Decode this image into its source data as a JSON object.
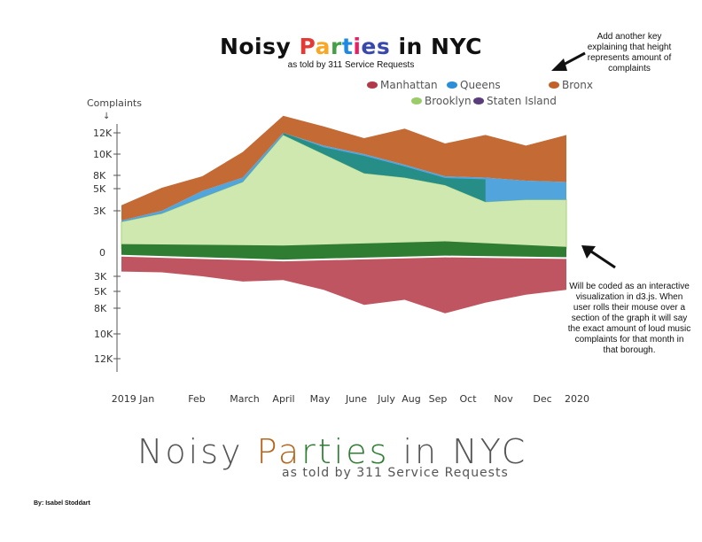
{
  "header": {
    "title_parts": [
      {
        "text": "Noisy ",
        "color": "#111111"
      },
      {
        "text": "P",
        "color": "#e53935"
      },
      {
        "text": "a",
        "color": "#f9a825"
      },
      {
        "text": "r",
        "color": "#43a047"
      },
      {
        "text": "t",
        "color": "#1e88e5"
      },
      {
        "text": "i",
        "color": "#e91e63"
      },
      {
        "text": "es",
        "color": "#3949ab"
      },
      {
        "text": " in NYC",
        "color": "#111111"
      }
    ],
    "subtitle": "as told by 311 Service Requests"
  },
  "notes": {
    "top": "Add another key explaining that height represents amount of complaints",
    "right": "Will be coded as an interactive visualization in d3.js. When user rolls their mouse over a section of the graph it will say the exact amount of loud music complaints for that month in that borough."
  },
  "sketch": {
    "title_parts": [
      {
        "text": "Noisy ",
        "color": "#555555"
      },
      {
        "text": "Pa",
        "color": "#b5651d"
      },
      {
        "text": "rties",
        "color": "#2e7d32"
      },
      {
        "text": " in NYC",
        "color": "#555555"
      }
    ],
    "subtitle": "as told by 311 Service Requests"
  },
  "byline": "By: Isabel Stoddart",
  "chart_data": {
    "type": "area",
    "subtype": "streamgraph",
    "ylabel": "Complaints",
    "y_ticks_above": [
      "12K",
      "10K",
      "8K",
      "5K",
      "3K"
    ],
    "y_tick_zero": "0",
    "y_ticks_below": [
      "3K",
      "5K",
      "8K",
      "10K",
      "12K"
    ],
    "x_labels": [
      "2019 Jan",
      "Feb",
      "March",
      "April",
      "May",
      "June",
      "July",
      "Aug",
      "Sep",
      "Oct",
      "Nov",
      "Dec",
      "2020"
    ],
    "legend": [
      {
        "name": "Manhattan",
        "color": "#b03a48"
      },
      {
        "name": "Queens",
        "color": "#2a8fd6"
      },
      {
        "name": "Bronx",
        "color": "#c0622a"
      },
      {
        "name": "Brooklyn",
        "color": "#9acd6a"
      },
      {
        "name": "Staten Island",
        "color": "#5a3d7a"
      }
    ],
    "series_colors": {
      "Brooklyn": "#cfe8b0",
      "Staten Island": "#2f7d32",
      "Manhattan": "#b8434f",
      "Queens": "#3f9bd8",
      "Bronx": "#c0622a",
      "Teal": "#1f8a78"
    },
    "above_months": [
      1,
      2,
      3,
      4,
      5,
      6,
      7,
      8,
      9,
      10,
      11,
      12
    ],
    "brooklyn_top": [
      2.2,
      2.8,
      4.2,
      6.5,
      11.8,
      10.0,
      8.2,
      7.5,
      5.8,
      3.8,
      4.0,
      4.0
    ],
    "queens_top": [
      2.3,
      3.0,
      4.8,
      7.5,
      12.0,
      10.8,
      10.0,
      9.0,
      7.8,
      7.5,
      6.8,
      6.5
    ],
    "bronx_top": [
      3.5,
      5.2,
      7.8,
      10.2,
      13.6,
      12.6,
      11.5,
      12.4,
      11.0,
      11.8,
      10.8,
      11.8
    ],
    "staten_band": [
      {
        "month": 1,
        "top": 0.6,
        "bottom": -0.3
      },
      {
        "month": 5,
        "top": 0.5,
        "bottom": -0.9
      },
      {
        "month": 9,
        "top": 0.8,
        "bottom": -0.4
      },
      {
        "month": 12,
        "top": 0.4,
        "bottom": -0.6
      }
    ],
    "manhattan_bottom": [
      -2.4,
      -2.5,
      -3.0,
      -3.7,
      -3.5,
      -4.8,
      -7.4,
      -6.5,
      -8.4,
      -7.0,
      -5.6,
      -4.8
    ]
  }
}
